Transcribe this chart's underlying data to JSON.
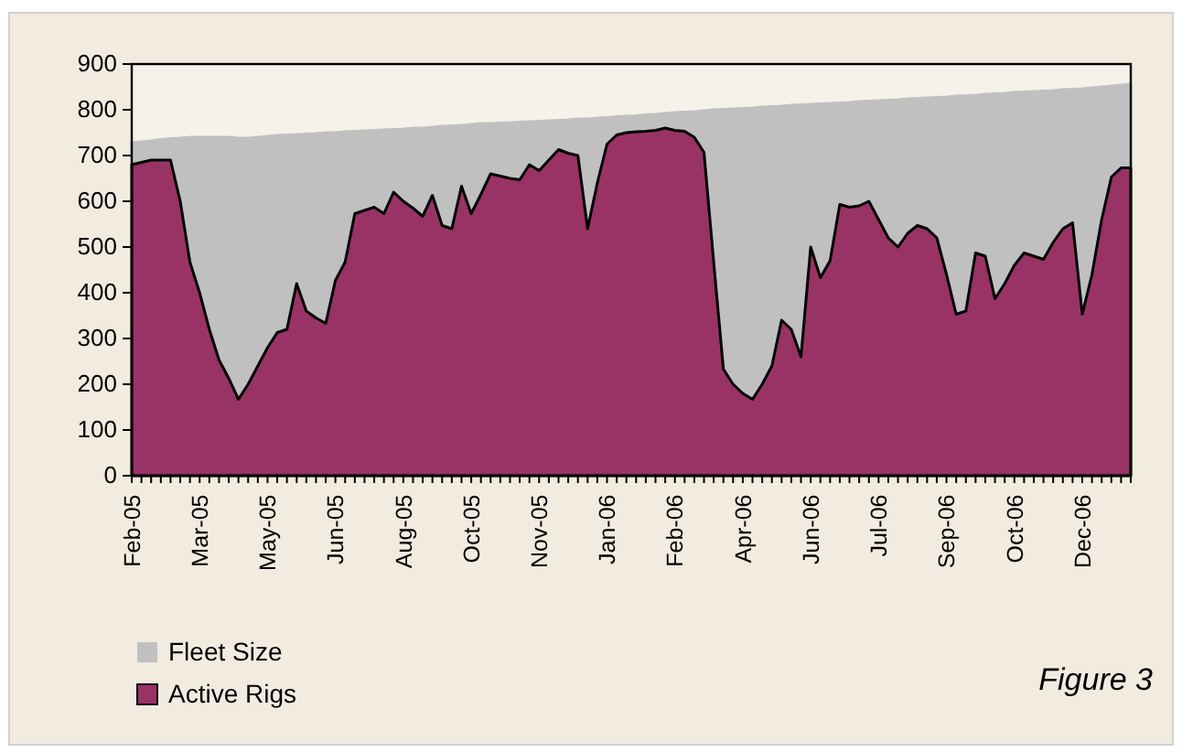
{
  "chart_data": {
    "type": "area",
    "categories": [
      "Feb-05",
      null,
      null,
      null,
      null,
      null,
      null,
      "Mar-05",
      null,
      null,
      null,
      null,
      null,
      null,
      "May-05",
      null,
      null,
      null,
      null,
      null,
      null,
      "Jun-05",
      null,
      null,
      null,
      null,
      null,
      null,
      "Aug-05",
      null,
      null,
      null,
      null,
      null,
      null,
      "Oct-05",
      null,
      null,
      null,
      null,
      null,
      null,
      "Nov-05",
      null,
      null,
      null,
      null,
      null,
      null,
      "Jan-06",
      null,
      null,
      null,
      null,
      null,
      null,
      "Feb-06",
      null,
      null,
      null,
      null,
      null,
      null,
      "Apr-06",
      null,
      null,
      null,
      null,
      null,
      null,
      "Jun-06",
      null,
      null,
      null,
      null,
      null,
      null,
      "Jul-06",
      null,
      null,
      null,
      null,
      null,
      null,
      "Sep-06",
      null,
      null,
      null,
      null,
      null,
      null,
      "Oct-06",
      null,
      null,
      null,
      null,
      null,
      null,
      "Dec-06",
      null,
      null,
      null,
      null,
      null
    ],
    "series": [
      {
        "name": "Fleet Size",
        "color": "#c0c0c0",
        "values": [
          728,
          730,
          732,
          735,
          737,
          738,
          740,
          740,
          740,
          740,
          740,
          738,
          738,
          740,
          742,
          744,
          745,
          746,
          747,
          748,
          750,
          750,
          752,
          753,
          754,
          755,
          756,
          757,
          758,
          760,
          760,
          762,
          764,
          765,
          766,
          768,
          770,
          770,
          771,
          772,
          773,
          774,
          775,
          776,
          777,
          778,
          780,
          780,
          782,
          783,
          785,
          786,
          787,
          789,
          790,
          792,
          794,
          795,
          796,
          798,
          800,
          801,
          802,
          803,
          804,
          806,
          807,
          808,
          810,
          811,
          812,
          813,
          814,
          815,
          816,
          818,
          819,
          820,
          821,
          822,
          824,
          825,
          826,
          827,
          828,
          830,
          831,
          832,
          834,
          835,
          836,
          838,
          839,
          840,
          841,
          842,
          844,
          845,
          846,
          848,
          850,
          852,
          854,
          856
        ]
      },
      {
        "name": "Active Rigs",
        "color": "#993366",
        "values": [
          680,
          685,
          690,
          690,
          690,
          600,
          467,
          400,
          320,
          253,
          213,
          167,
          200,
          240,
          280,
          313,
          320,
          420,
          360,
          345,
          333,
          427,
          467,
          573,
          580,
          587,
          573,
          620,
          600,
          585,
          567,
          613,
          547,
          540,
          633,
          573,
          615,
          660,
          655,
          650,
          647,
          680,
          667,
          690,
          713,
          705,
          700,
          540,
          640,
          725,
          745,
          750,
          752,
          753,
          755,
          760,
          755,
          753,
          740,
          707,
          467,
          233,
          200,
          180,
          167,
          200,
          240,
          340,
          320,
          260,
          500,
          433,
          470,
          593,
          587,
          590,
          600,
          560,
          520,
          500,
          530,
          547,
          540,
          520,
          440,
          353,
          360,
          487,
          480,
          387,
          420,
          460,
          487,
          480,
          473,
          510,
          540,
          553,
          353,
          440,
          560,
          653,
          673,
          673
        ]
      }
    ],
    "ylim": [
      0,
      900
    ],
    "yticks": [
      0,
      100,
      200,
      300,
      400,
      500,
      600,
      700,
      800,
      900
    ],
    "legend": "bottom left",
    "annotations": [
      "Figure 3"
    ]
  }
}
